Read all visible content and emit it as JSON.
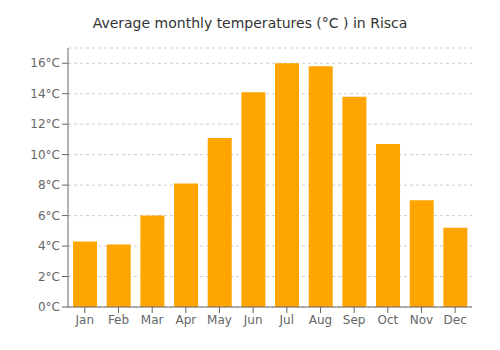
{
  "chart_data": {
    "type": "bar",
    "title": "Average monthly temperatures (°C ) in Risca",
    "categories": [
      "Jan",
      "Feb",
      "Mar",
      "Apr",
      "May",
      "Jun",
      "Jul",
      "Aug",
      "Sep",
      "Oct",
      "Nov",
      "Dec"
    ],
    "values": [
      4.3,
      4.1,
      6.0,
      8.1,
      11.1,
      14.1,
      16.0,
      15.8,
      13.8,
      10.7,
      7.0,
      5.2
    ],
    "color": "#FFA500",
    "ylim": [
      0,
      17
    ],
    "yticks": [
      {
        "value": 0,
        "label": "0°C"
      },
      {
        "value": 2,
        "label": "2°C"
      },
      {
        "value": 4,
        "label": "4°C"
      },
      {
        "value": 6,
        "label": "6°C"
      },
      {
        "value": 8,
        "label": "8°C"
      },
      {
        "value": 10,
        "label": "10°C"
      },
      {
        "value": 12,
        "label": "12°C"
      },
      {
        "value": 14,
        "label": "14°C"
      },
      {
        "value": 16,
        "label": "16°C"
      }
    ],
    "grid": true
  }
}
